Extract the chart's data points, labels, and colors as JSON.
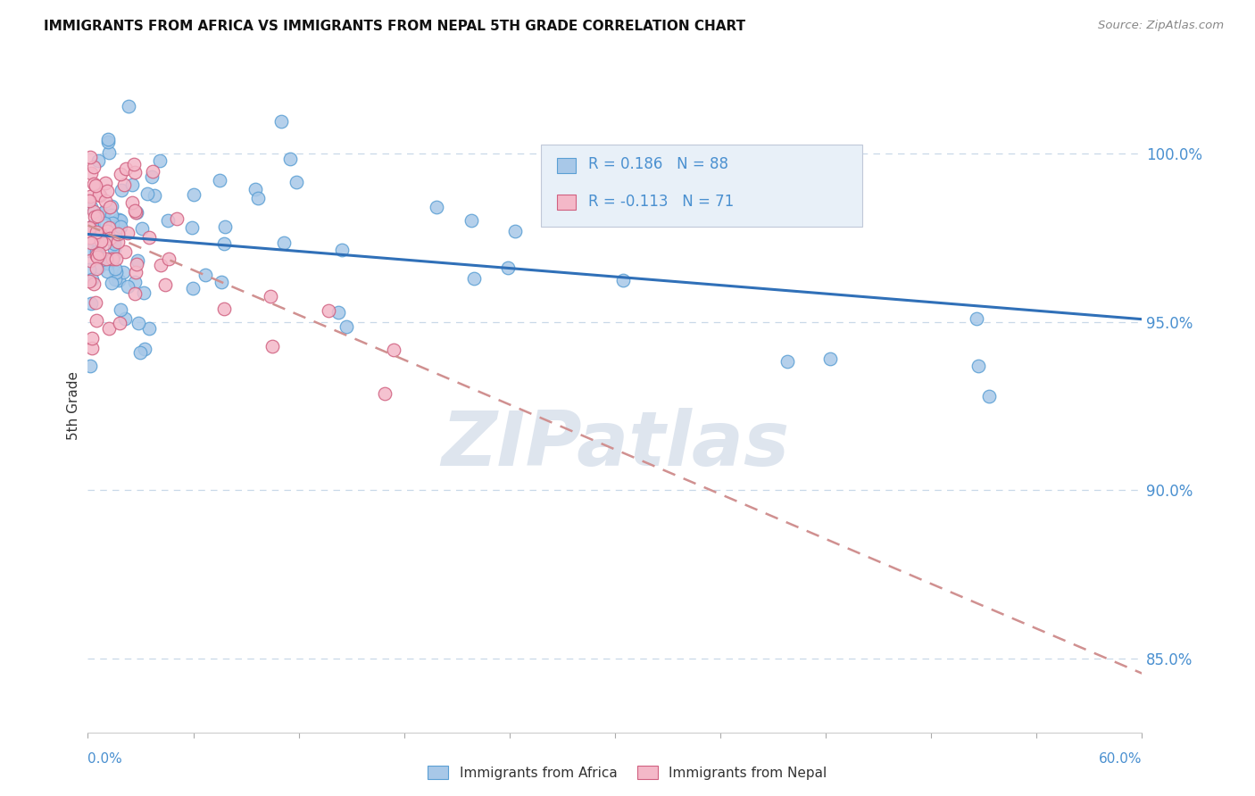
{
  "title": "IMMIGRANTS FROM AFRICA VS IMMIGRANTS FROM NEPAL 5TH GRADE CORRELATION CHART",
  "source": "Source: ZipAtlas.com",
  "ylabel": "5th Grade",
  "xlim": [
    0.0,
    0.6
  ],
  "ylim": [
    0.828,
    1.022
  ],
  "y_ticks": [
    0.85,
    0.9,
    0.95,
    1.0
  ],
  "legend1_R": "0.186",
  "legend1_N": "88",
  "legend2_R": "-0.113",
  "legend2_N": "71",
  "africa_color": "#a8c8e8",
  "africa_edge": "#5a9fd4",
  "nepal_color": "#f4b8c8",
  "nepal_edge": "#d06080",
  "trend_africa_color": "#3070b8",
  "trend_nepal_color": "#d09090",
  "grid_color": "#c8d8e8",
  "watermark_color": "#c8d4e4",
  "legend_box_color": "#e8f0f8",
  "legend_box_edge": "#c0c8d8",
  "tick_color": "#4a90d0",
  "ylabel_color": "#333333",
  "title_color": "#111111",
  "source_color": "#888888"
}
